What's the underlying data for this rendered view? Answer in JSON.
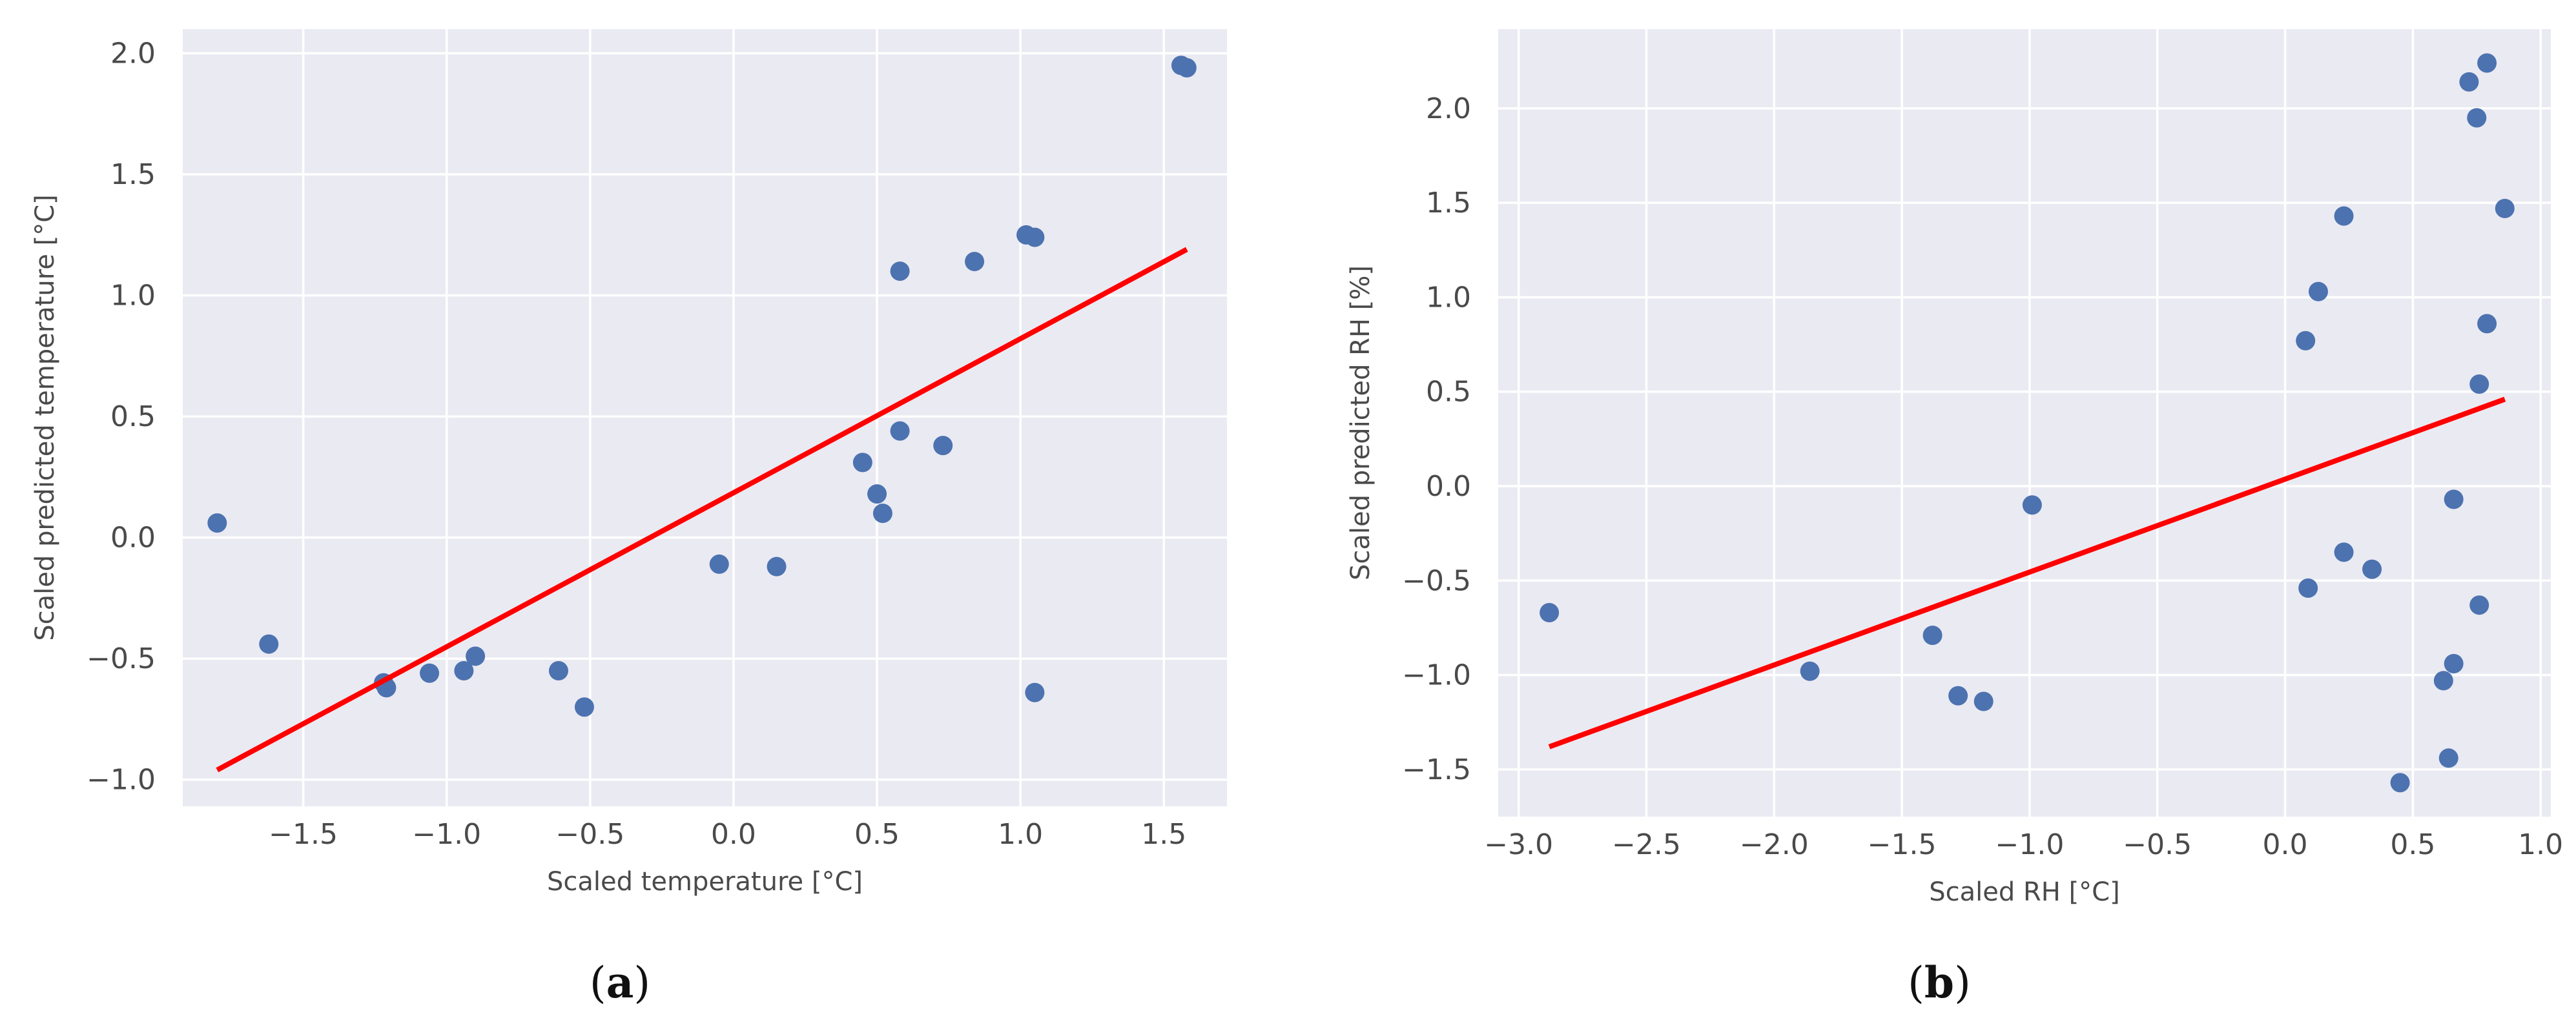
{
  "chart_data": [
    {
      "type": "scatter",
      "panel_label": {
        "open": "(",
        "letter": "a",
        "close": ")"
      },
      "xlabel": "Scaled temperature [°C]",
      "ylabel": "Scaled predicted temperature [°C]",
      "xlim": [
        -1.92,
        1.72
      ],
      "ylim": [
        -1.11,
        2.1
      ],
      "xticks": [
        -1.5,
        -1.0,
        -0.5,
        0.0,
        0.5,
        1.0,
        1.5
      ],
      "xtick_labels": [
        "−1.5",
        "−1.0",
        "−0.5",
        "0.0",
        "0.5",
        "1.0",
        "1.5"
      ],
      "yticks": [
        -1.0,
        -0.5,
        0.0,
        0.5,
        1.0,
        1.5,
        2.0
      ],
      "ytick_labels": [
        "−1.0",
        "−0.5",
        "0.0",
        "0.5",
        "1.0",
        "1.5",
        "2.0"
      ],
      "grid": true,
      "background": "#eaeaf2",
      "point_color": "#4c72b0",
      "line_color": "#ff0000",
      "points": [
        {
          "x": -1.8,
          "y": 0.06
        },
        {
          "x": -1.62,
          "y": -0.44
        },
        {
          "x": -1.22,
          "y": -0.6
        },
        {
          "x": -1.21,
          "y": -0.62
        },
        {
          "x": -1.06,
          "y": -0.56
        },
        {
          "x": -0.94,
          "y": -0.55
        },
        {
          "x": -0.9,
          "y": -0.49
        },
        {
          "x": -0.61,
          "y": -0.55
        },
        {
          "x": -0.52,
          "y": -0.7
        },
        {
          "x": -0.05,
          "y": -0.11
        },
        {
          "x": 0.15,
          "y": -0.12
        },
        {
          "x": 0.45,
          "y": 0.31
        },
        {
          "x": 0.5,
          "y": 0.18
        },
        {
          "x": 0.52,
          "y": 0.1
        },
        {
          "x": 0.58,
          "y": 0.44
        },
        {
          "x": 0.58,
          "y": 1.1
        },
        {
          "x": 0.73,
          "y": 0.38
        },
        {
          "x": 0.84,
          "y": 1.14
        },
        {
          "x": 1.02,
          "y": 1.25
        },
        {
          "x": 1.05,
          "y": 1.24
        },
        {
          "x": 1.05,
          "y": -0.64
        },
        {
          "x": 1.56,
          "y": 1.95
        },
        {
          "x": 1.58,
          "y": 1.94
        }
      ],
      "fit_line": {
        "x": [
          -1.8,
          1.58
        ],
        "y": [
          -0.96,
          1.19
        ]
      }
    },
    {
      "type": "scatter",
      "panel_label": {
        "open": "(",
        "letter": "b",
        "close": ")"
      },
      "xlabel": "Scaled RH [°C]",
      "ylabel": "Scaled predicted RH [%]",
      "xlim": [
        -3.08,
        1.04
      ],
      "ylim": [
        -1.75,
        2.42
      ],
      "xticks": [
        -3.0,
        -2.5,
        -2.0,
        -1.5,
        -1.0,
        -0.5,
        0.0,
        0.5,
        1.0
      ],
      "xtick_labels": [
        "−3.0",
        "−2.5",
        "−2.0",
        "−1.5",
        "−1.0",
        "−0.5",
        "0.0",
        "0.5",
        "1.0"
      ],
      "yticks": [
        -1.5,
        -1.0,
        -0.5,
        0.0,
        0.5,
        1.0,
        1.5,
        2.0
      ],
      "ytick_labels": [
        "−1.5",
        "−1.0",
        "−0.5",
        "0.0",
        "0.5",
        "1.0",
        "1.5",
        "2.0"
      ],
      "grid": true,
      "background": "#eaeaf2",
      "point_color": "#4c72b0",
      "line_color": "#ff0000",
      "points": [
        {
          "x": -2.88,
          "y": -0.67
        },
        {
          "x": -1.86,
          "y": -0.98
        },
        {
          "x": -1.38,
          "y": -0.79
        },
        {
          "x": -1.28,
          "y": -1.11
        },
        {
          "x": -1.18,
          "y": -1.14
        },
        {
          "x": -0.99,
          "y": -0.1
        },
        {
          "x": 0.08,
          "y": 0.77
        },
        {
          "x": 0.09,
          "y": -0.54
        },
        {
          "x": 0.13,
          "y": 1.03
        },
        {
          "x": 0.23,
          "y": 1.43
        },
        {
          "x": 0.23,
          "y": -0.35
        },
        {
          "x": 0.34,
          "y": -0.44
        },
        {
          "x": 0.45,
          "y": -1.57
        },
        {
          "x": 0.62,
          "y": -1.03
        },
        {
          "x": 0.64,
          "y": -1.44
        },
        {
          "x": 0.66,
          "y": -0.94
        },
        {
          "x": 0.66,
          "y": -0.07
        },
        {
          "x": 0.72,
          "y": 2.14
        },
        {
          "x": 0.75,
          "y": 1.95
        },
        {
          "x": 0.76,
          "y": 0.54
        },
        {
          "x": 0.76,
          "y": -0.63
        },
        {
          "x": 0.79,
          "y": 2.24
        },
        {
          "x": 0.79,
          "y": 0.86
        },
        {
          "x": 0.86,
          "y": 1.47
        }
      ],
      "fit_line": {
        "x": [
          -2.88,
          0.86
        ],
        "y": [
          -1.38,
          0.46
        ]
      }
    }
  ]
}
